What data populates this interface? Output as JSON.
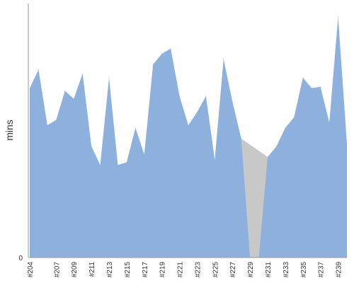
{
  "chart_data": {
    "type": "area",
    "title": "",
    "xlabel": "",
    "ylabel": "mins",
    "ylim": [
      0,
      9.6
    ],
    "y_ticks": [
      "0"
    ],
    "grid": false,
    "legend": "none",
    "x_tick_labels": [
      "#204",
      "#207",
      "#209",
      "#211",
      "#213",
      "#215",
      "#217",
      "#219",
      "#221",
      "#223",
      "#225",
      "#227",
      "#229",
      "#231",
      "#233",
      "#235",
      "#237",
      "#239"
    ],
    "x": [
      "#204",
      "#205",
      "#206",
      "#207",
      "#208",
      "#209",
      "#210",
      "#211",
      "#212",
      "#213",
      "#214",
      "#215",
      "#216",
      "#217",
      "#218",
      "#219",
      "#220",
      "#221",
      "#222",
      "#223",
      "#224",
      "#225",
      "#226",
      "#227",
      "#228",
      "#229",
      "#230",
      "#231",
      "#232",
      "#233",
      "#234",
      "#235",
      "#236",
      "#237",
      "#238",
      "#239",
      "#240"
    ],
    "series": [
      {
        "values": [
          6.4,
          7.1,
          5.0,
          5.2,
          6.3,
          6.0,
          6.95,
          4.2,
          3.5,
          6.8,
          3.5,
          3.6,
          4.9,
          3.9,
          7.3,
          7.7,
          7.9,
          6.1,
          5.0,
          5.5,
          6.1,
          3.7,
          7.5,
          5.9,
          4.5,
          0,
          0,
          3.8,
          4.2,
          4.9,
          5.3,
          6.8,
          6.4,
          6.45,
          5.1,
          9.1,
          4.3
        ],
        "color": "#8eb0dc"
      }
    ],
    "missing_indices": [
      25,
      26
    ],
    "missing_color": "#c8c8c8",
    "axis_color": "#999999"
  }
}
